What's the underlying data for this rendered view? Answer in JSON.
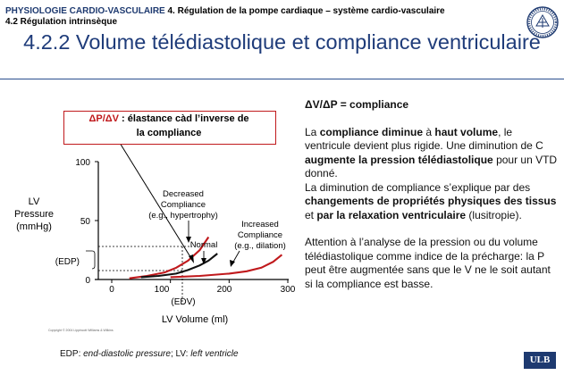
{
  "header": {
    "course": "PHYSIOLOGIE CARDIO-VASCULAIRE",
    "chapter": " 4. Régulation de la pompe cardiaque – système cardio-vasculaire",
    "section": "4.2 Régulation intrinsèque"
  },
  "title": "4.2.2 Volume télédiastolique et compliance ventriculaire",
  "callout": {
    "ratio": "ΔP/ΔV",
    "text_a": " : élastance càd l’",
    "text_b": "inverse de",
    "text_c": "la compliance"
  },
  "figure": {
    "ylabel_line1": "LV",
    "ylabel_line2": "Pressure",
    "ylabel_line3": "(mmHg)",
    "xlabel": "LV Volume (ml)",
    "y_ticks": [
      "0",
      "50",
      "100"
    ],
    "x_ticks": [
      "0",
      "100",
      "200",
      "300"
    ],
    "edp_label": "(EDP)",
    "edv_label": "(EDV)",
    "annotation_decreased_1": "Decreased",
    "annotation_decreased_2": "Compliance",
    "annotation_decreased_3": "(e.g., hypertrophy)",
    "annotation_normal": "Normal",
    "annotation_increased_1": "Increased",
    "annotation_increased_2": "Compliance",
    "annotation_increased_3": "(e.g., dilation)",
    "copyright": "Copyright © 2004 Lippincott Williams & Wilkins"
  },
  "chart_data": {
    "type": "line",
    "xlabel": "LV Volume (ml)",
    "ylabel": "LV Pressure (mmHg)",
    "xlim": [
      0,
      300
    ],
    "ylim": [
      0,
      100
    ],
    "series": [
      {
        "name": "Decreased Compliance (e.g., hypertrophy)",
        "x": [
          30,
          60,
          90,
          110,
          130,
          150,
          165
        ],
        "y": [
          1,
          3,
          6,
          10,
          16,
          25,
          36
        ]
      },
      {
        "name": "Normal",
        "x": [
          50,
          80,
          110,
          130,
          150,
          165,
          180
        ],
        "y": [
          2,
          3,
          5,
          8,
          12,
          16,
          22
        ]
      },
      {
        "name": "Increased Compliance (e.g., dilation)",
        "x": [
          100,
          150,
          200,
          230,
          255,
          275,
          290
        ],
        "y": [
          2,
          3,
          5,
          7,
          10,
          15,
          21
        ]
      }
    ],
    "markers": {
      "EDP": 10,
      "EDV": 120
    }
  },
  "right_text": {
    "heading": "ΔV/ΔP = compliance",
    "p1_a": "La ",
    "p1_b": "compliance diminue",
    "p1_c": " à ",
    "p1_d": "haut volume",
    "p1_e": ", le ventricule devient plus rigide. Une diminution de C ",
    "p1_f": "augmente la pression télédiastolique",
    "p1_g": " pour un VTD donné.",
    "p2_a": "La diminution de compliance s’explique par des ",
    "p2_b": "changements de propriétés physiques des tissus",
    "p2_c": " et ",
    "p2_d": "par la relaxation ventriculaire",
    "p2_e": " (lusitropie).",
    "p3": "Attention à l’analyse de la pression ou du volume télédiastolique  comme indice de la précharge: la P peut être augmentée sans que le V ne le soit autant si la compliance est basse."
  },
  "footer": {
    "note_edp": "EDP",
    "note_edp_def": ": ",
    "note_edp_text": "end-diastolic pressure",
    "note_sep": "; LV: ",
    "note_lv_text": "left ventricle",
    "brand": "ULB"
  },
  "colors": {
    "brand_blue": "#1e3a70",
    "curve_red": "#c0191c",
    "curve_normal": "#111111"
  }
}
